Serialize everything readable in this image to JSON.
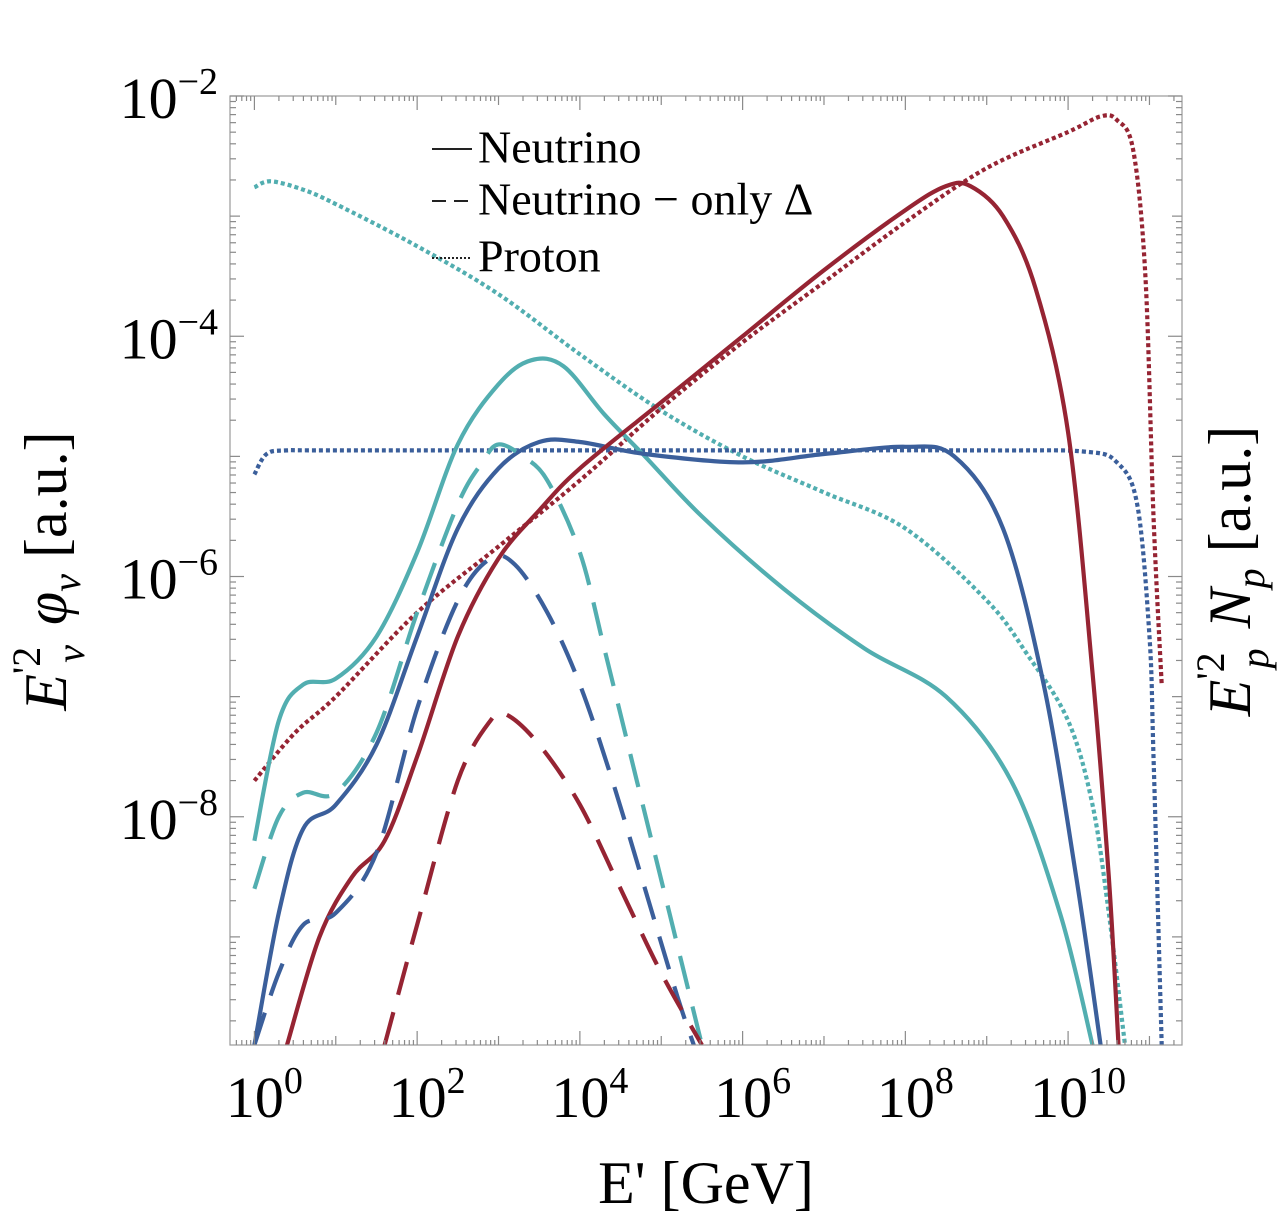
{
  "chart_data": {
    "type": "line",
    "title": "",
    "xlabel": "E' [GeV]",
    "ylabel_left": {
      "base": "E",
      "prime": "'",
      "sup": "2",
      "sub": "ν",
      "mid": "φ",
      "mid_sub": "ν",
      "unit": "[a.u.]"
    },
    "ylabel_right": {
      "base": "E",
      "prime": "'",
      "sup": "2",
      "sub": "p",
      "mid": "N",
      "mid_sub": "p",
      "unit": "[a.u.]"
    },
    "x_scale": "log10",
    "y_scale": "log10",
    "xlim_log10": [
      -0.3,
      11.4
    ],
    "ylim_log10": [
      -9.9,
      -2.0
    ],
    "x_ticks": [
      {
        "base": "10",
        "exp": "0",
        "v": 0
      },
      {
        "base": "10",
        "exp": "2",
        "v": 2
      },
      {
        "base": "10",
        "exp": "4",
        "v": 4
      },
      {
        "base": "10",
        "exp": "6",
        "v": 6
      },
      {
        "base": "10",
        "exp": "8",
        "v": 8
      },
      {
        "base": "10",
        "exp": "10",
        "v": 10
      }
    ],
    "y_ticks": [
      {
        "base": "10",
        "exp": "−2",
        "v": -2
      },
      {
        "base": "10",
        "exp": "−4",
        "v": -4
      },
      {
        "base": "10",
        "exp": "−6",
        "v": -6
      },
      {
        "base": "10",
        "exp": "−8",
        "v": -8
      }
    ],
    "legend": {
      "placement": "top-center",
      "entries": [
        {
          "label": "Neutrino",
          "style": "solid"
        },
        {
          "label": "Neutrino − only Δ",
          "style": "dashed"
        },
        {
          "label": "Proton",
          "style": "dotted"
        }
      ]
    },
    "colors": {
      "cyan": "#52AEB0",
      "blue": "#3B5F9B",
      "red": "#962433"
    },
    "series": [
      {
        "name": "Proton (cyan)",
        "color": "cyan",
        "style": "dotted",
        "points": [
          [
            0,
            -2.76
          ],
          [
            0.2,
            -2.71
          ],
          [
            0.6,
            -2.78
          ],
          [
            1,
            -2.9
          ],
          [
            2,
            -3.25
          ],
          [
            3,
            -3.65
          ],
          [
            4,
            -4.15
          ],
          [
            5,
            -4.62
          ],
          [
            6,
            -5.0
          ],
          [
            7,
            -5.3
          ],
          [
            8,
            -5.6
          ],
          [
            9,
            -6.2
          ],
          [
            9.5,
            -6.65
          ],
          [
            10,
            -7.2
          ],
          [
            10.3,
            -7.9
          ],
          [
            10.5,
            -8.8
          ],
          [
            10.7,
            -9.9
          ]
        ]
      },
      {
        "name": "Proton (blue)",
        "color": "blue",
        "style": "dotted",
        "points": [
          [
            0,
            -5.15
          ],
          [
            0.15,
            -4.98
          ],
          [
            0.4,
            -4.95
          ],
          [
            1,
            -4.95
          ],
          [
            5,
            -4.95
          ],
          [
            9,
            -4.95
          ],
          [
            10.2,
            -4.96
          ],
          [
            10.6,
            -5.05
          ],
          [
            10.85,
            -5.4
          ],
          [
            11.0,
            -6.5
          ],
          [
            11.05,
            -7.5
          ],
          [
            11.15,
            -9.9
          ]
        ]
      },
      {
        "name": "Proton (red)",
        "color": "red",
        "style": "dotted",
        "points": [
          [
            0,
            -7.7
          ],
          [
            0.5,
            -7.3
          ],
          [
            1,
            -7.0
          ],
          [
            2,
            -6.3
          ],
          [
            3,
            -5.75
          ],
          [
            4,
            -5.2
          ],
          [
            5,
            -4.6
          ],
          [
            6,
            -4.05
          ],
          [
            7,
            -3.55
          ],
          [
            8,
            -3.05
          ],
          [
            9,
            -2.6
          ],
          [
            10,
            -2.3
          ],
          [
            10.4,
            -2.17
          ],
          [
            10.6,
            -2.2
          ],
          [
            10.8,
            -2.45
          ],
          [
            10.95,
            -3.5
          ],
          [
            11.05,
            -5.5
          ],
          [
            11.15,
            -6.9
          ]
        ]
      },
      {
        "name": "Neutrino (cyan)",
        "color": "cyan",
        "style": "solid",
        "points": [
          [
            0,
            -8.2
          ],
          [
            0.3,
            -7.2
          ],
          [
            0.6,
            -6.9
          ],
          [
            1,
            -6.85
          ],
          [
            1.5,
            -6.5
          ],
          [
            2,
            -5.8
          ],
          [
            2.5,
            -4.9
          ],
          [
            3,
            -4.4
          ],
          [
            3.4,
            -4.2
          ],
          [
            3.8,
            -4.25
          ],
          [
            4.3,
            -4.65
          ],
          [
            4.8,
            -5.0
          ],
          [
            5.5,
            -5.5
          ],
          [
            6.5,
            -6.1
          ],
          [
            7.5,
            -6.6
          ],
          [
            8.5,
            -7.0
          ],
          [
            9.3,
            -7.7
          ],
          [
            9.9,
            -8.8
          ],
          [
            10.3,
            -9.9
          ]
        ]
      },
      {
        "name": "Neutrino (blue)",
        "color": "blue",
        "style": "solid",
        "points": [
          [
            0,
            -9.9
          ],
          [
            0.3,
            -8.8
          ],
          [
            0.6,
            -8.1
          ],
          [
            1,
            -7.9
          ],
          [
            1.5,
            -7.4
          ],
          [
            2,
            -6.5
          ],
          [
            2.5,
            -5.6
          ],
          [
            3,
            -5.1
          ],
          [
            3.5,
            -4.88
          ],
          [
            4,
            -4.88
          ],
          [
            4.8,
            -4.98
          ],
          [
            6,
            -5.05
          ],
          [
            7,
            -4.98
          ],
          [
            8,
            -4.92
          ],
          [
            8.6,
            -5.0
          ],
          [
            9.2,
            -5.6
          ],
          [
            9.7,
            -6.9
          ],
          [
            10.1,
            -8.5
          ],
          [
            10.4,
            -9.9
          ]
        ]
      },
      {
        "name": "Neutrino (red)",
        "color": "red",
        "style": "solid",
        "points": [
          [
            0.4,
            -9.9
          ],
          [
            0.8,
            -9.0
          ],
          [
            1.2,
            -8.5
          ],
          [
            1.6,
            -8.2
          ],
          [
            2,
            -7.5
          ],
          [
            2.5,
            -6.5
          ],
          [
            3,
            -5.85
          ],
          [
            3.5,
            -5.45
          ],
          [
            4,
            -5.1
          ],
          [
            5,
            -4.55
          ],
          [
            6,
            -4.0
          ],
          [
            7,
            -3.45
          ],
          [
            8,
            -2.95
          ],
          [
            8.5,
            -2.75
          ],
          [
            8.8,
            -2.75
          ],
          [
            9.2,
            -3.0
          ],
          [
            9.6,
            -3.6
          ],
          [
            10,
            -4.8
          ],
          [
            10.3,
            -6.8
          ],
          [
            10.5,
            -8.5
          ],
          [
            10.62,
            -9.9
          ]
        ]
      },
      {
        "name": "Neutrino - only Δ (cyan)",
        "color": "cyan",
        "style": "dashed",
        "points": [
          [
            0,
            -8.6
          ],
          [
            0.3,
            -8.0
          ],
          [
            0.6,
            -7.8
          ],
          [
            1,
            -7.8
          ],
          [
            1.5,
            -7.3
          ],
          [
            2,
            -6.3
          ],
          [
            2.5,
            -5.4
          ],
          [
            2.8,
            -5.05
          ],
          [
            3.0,
            -4.9
          ],
          [
            3.3,
            -5.0
          ],
          [
            3.6,
            -5.2
          ],
          [
            4,
            -5.8
          ],
          [
            4.3,
            -6.6
          ],
          [
            4.7,
            -7.7
          ],
          [
            5.1,
            -8.8
          ],
          [
            5.5,
            -9.9
          ]
        ]
      },
      {
        "name": "Neutrino - only Δ (blue)",
        "color": "blue",
        "style": "dashed",
        "points": [
          [
            0,
            -9.9
          ],
          [
            0.3,
            -9.3
          ],
          [
            0.6,
            -8.9
          ],
          [
            1,
            -8.8
          ],
          [
            1.5,
            -8.3
          ],
          [
            2,
            -7.1
          ],
          [
            2.5,
            -6.2
          ],
          [
            2.9,
            -5.85
          ],
          [
            3.2,
            -5.9
          ],
          [
            3.6,
            -6.3
          ],
          [
            4,
            -6.9
          ],
          [
            4.4,
            -7.7
          ],
          [
            4.8,
            -8.6
          ],
          [
            5.2,
            -9.5
          ],
          [
            5.4,
            -9.9
          ]
        ]
      },
      {
        "name": "Neutrino - only Δ (red)",
        "color": "red",
        "style": "dashed",
        "points": [
          [
            1.6,
            -9.9
          ],
          [
            2,
            -8.9
          ],
          [
            2.5,
            -7.7
          ],
          [
            2.9,
            -7.2
          ],
          [
            3.1,
            -7.15
          ],
          [
            3.5,
            -7.4
          ],
          [
            4,
            -7.9
          ],
          [
            4.5,
            -8.6
          ],
          [
            5,
            -9.3
          ],
          [
            5.5,
            -9.9
          ]
        ]
      }
    ]
  }
}
